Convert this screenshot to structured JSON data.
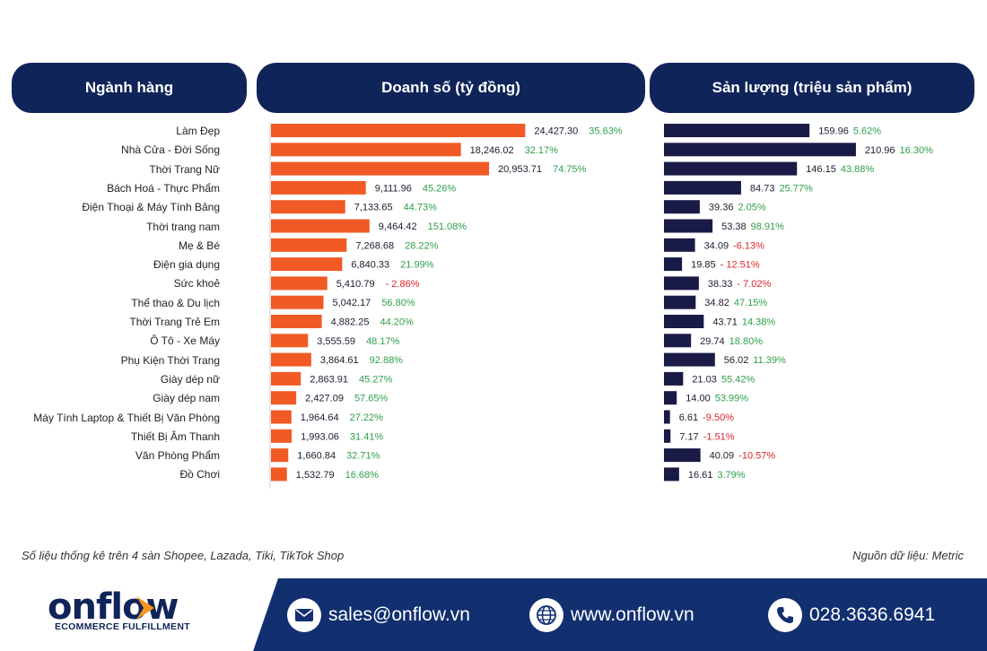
{
  "headers": {
    "category": "Ngành hàng",
    "revenue": "Doanh số (tỷ đồng)",
    "volume": "Sản lượng (triệu sản phẩm)"
  },
  "colors": {
    "header_bg": "#0f2459",
    "revenue_bar": "#f15a24",
    "volume_bar": "#1a1a46",
    "positive": "#2e9e4a",
    "negative": "#d8262b",
    "footer_bg": "#123070"
  },
  "chart_data": [
    {
      "type": "bar",
      "orientation": "horizontal",
      "categories": [
        "Làm Đẹp",
        "Nhà Cửa - Đời Sống",
        "Thời Trang Nữ",
        "Bách Hoá - Thực Phẩm",
        "Điện Thoại & Máy Tính Bảng",
        "Thời trang nam",
        "Mẹ & Bé",
        "Điện gia dụng",
        "Sức khoẻ",
        "Thể thao & Du lịch",
        "Thời Trang Trẻ Em",
        "Ô Tô - Xe Máy",
        "Phụ Kiện Thời Trang",
        "Giày dép nữ",
        "Giày dép nam",
        "Máy Tính Laptop & Thiết Bị Văn Phòng",
        "Thiết Bị Âm Thanh",
        "Văn Phòng Phẩm",
        "Đồ Chơi"
      ],
      "values": [
        24427.3,
        18246.02,
        20953.71,
        9111.96,
        7133.65,
        9464.42,
        7268.68,
        6840.33,
        5410.79,
        5042.17,
        4882.25,
        3555.59,
        3864.61,
        2863.91,
        2427.09,
        1964.64,
        1993.06,
        1660.84,
        1532.79
      ],
      "value_labels": [
        "24,427.30",
        "18,246.02",
        "20,953.71",
        "9,111.96",
        "7,133.65",
        "9,464.42",
        "7,268.68",
        "6,840.33",
        "5,410.79",
        "5,042.17",
        "4,882.25",
        "3,555.59",
        "3,864.61",
        "2,863.91",
        "2,427.09",
        "1,964.64",
        "1,993.06",
        "1,660.84",
        "1,532.79"
      ],
      "growth_labels": [
        "35.63%",
        "32.17%",
        "74.75%",
        "45.26%",
        "44.73%",
        "151.08%",
        "28.22%",
        "21.99%",
        "- 2.86%",
        "56.80%",
        "44.20%",
        "48.17%",
        "92.88%",
        "45.27%",
        "57.65%",
        "27.22%",
        "31.41%",
        "32.71%",
        "16.68%"
      ],
      "xlim": [
        0,
        25000
      ]
    },
    {
      "type": "bar",
      "orientation": "horizontal",
      "categories": [
        "Làm Đẹp",
        "Nhà Cửa - Đời Sống",
        "Thời Trang Nữ",
        "Bách Hoá - Thực Phẩm",
        "Điện Thoại & Máy Tính Bảng",
        "Thời trang nam",
        "Mẹ & Bé",
        "Điện gia dụng",
        "Sức khoẻ",
        "Thể thao & Du lịch",
        "Thời Trang Trẻ Em",
        "Ô Tô - Xe Máy",
        "Phụ Kiện Thời Trang",
        "Giày dép nữ",
        "Giày dép nam",
        "Máy Tính Laptop & Thiết Bị Văn Phòng",
        "Thiết Bị Âm Thanh",
        "Văn Phòng Phẩm",
        "Đồ Chơi"
      ],
      "values": [
        159.96,
        210.96,
        146.15,
        84.73,
        39.36,
        53.38,
        34.09,
        19.85,
        38.33,
        34.82,
        43.71,
        29.74,
        56.02,
        21.03,
        14.0,
        6.61,
        7.17,
        40.09,
        16.61
      ],
      "value_labels": [
        "159.96",
        "210.96",
        "146.15",
        "84.73",
        "39.36",
        "53.38",
        "34.09",
        "19.85",
        "38.33",
        "34.82",
        "43.71",
        "29.74",
        "56.02",
        "21.03",
        "14.00",
        "6.61",
        "7.17",
        "40.09",
        "16.61"
      ],
      "growth_labels": [
        "5.62%",
        "16.30%",
        "43.88%",
        "25.77%",
        "2.05%",
        "98.91%",
        "-6.13%",
        "- 12.51%",
        "- 7.02%",
        "47.15%",
        "14.38%",
        "18.80%",
        "11.39%",
        "55.42%",
        "53.99%",
        "-9.50%",
        "-1.51%",
        "-10.57%",
        "3.79%"
      ],
      "xlim": [
        0,
        215
      ]
    }
  ],
  "notes": {
    "left": "Số liệu thống kê trên 4 sàn Shopee, Lazada, Tiki, TikTok Shop",
    "right": "Nguồn dữ liệu: Metric"
  },
  "footer": {
    "logo_word": "onflow",
    "logo_sub": "ECOMMERCE FULFILLMENT",
    "email": "sales@onflow.vn",
    "website": "www.onflow.vn",
    "phone": "028.3636.6941",
    "email_icon": "envelope-icon",
    "web_icon": "globe-icon",
    "phone_icon": "phone-icon"
  }
}
